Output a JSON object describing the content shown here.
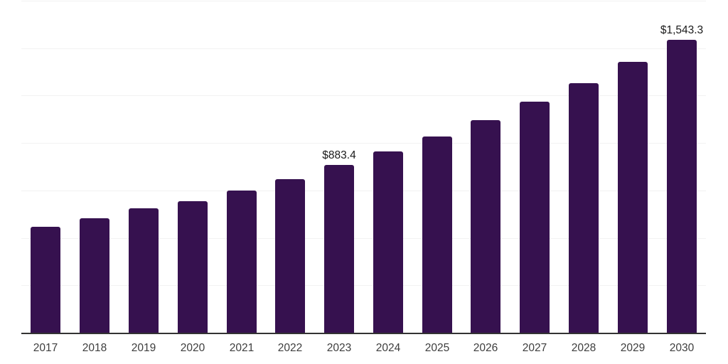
{
  "chart_data": {
    "type": "bar",
    "title": "",
    "xlabel": "",
    "ylabel": "",
    "categories": [
      "2017",
      "2018",
      "2019",
      "2020",
      "2021",
      "2022",
      "2023",
      "2024",
      "2025",
      "2026",
      "2027",
      "2028",
      "2029",
      "2030"
    ],
    "values": [
      558.3,
      603.3,
      655.8,
      693.2,
      749.5,
      807.6,
      883.4,
      955.6,
      1034.3,
      1120.4,
      1217.9,
      1315.3,
      1427.7,
      1543.3
    ],
    "ylim": [
      0,
      1750
    ],
    "grid_step": 250,
    "grid": true,
    "legend": false,
    "y_axis_tick_labels_visible": false,
    "data_labels": [
      {
        "category": "2023",
        "text": "$883.4"
      },
      {
        "category": "2030",
        "text": "$1,543.3"
      }
    ],
    "colors": {
      "bar": "#36114F",
      "gridline": "#f2f2f2",
      "axis_line": "#333333",
      "tick_label": "#3d3d3d",
      "data_label": "#1a1a1a",
      "background": "#ffffff"
    }
  }
}
